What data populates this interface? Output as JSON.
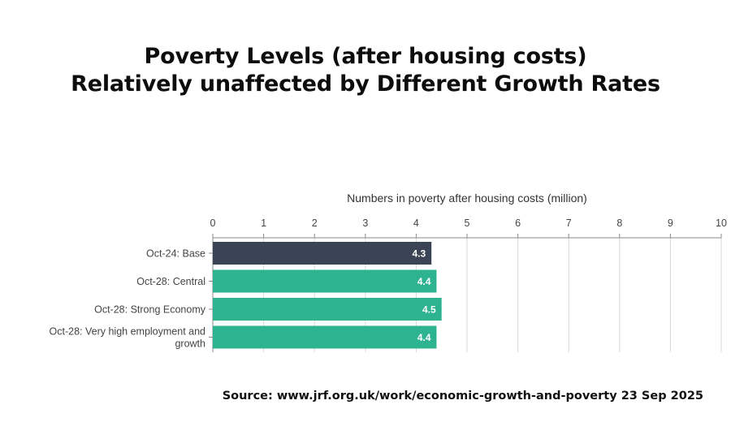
{
  "title_line1": "Poverty Levels (after housing costs)",
  "title_line2": "Relatively unaffected by Different Growth Rates",
  "source": "Source: www.jrf.org.uk/work/economic-growth-and-poverty 23 Sep 2025",
  "chart_data": {
    "type": "bar",
    "orientation": "horizontal",
    "xlabel": "Numbers in poverty after housing costs (million)",
    "xlabel_position": "top",
    "xlim": [
      0,
      10
    ],
    "xticks": [
      "0",
      "1",
      "2",
      "3",
      "4",
      "5",
      "6",
      "7",
      "8",
      "9",
      "10"
    ],
    "grid": true,
    "categories": [
      [
        "Oct-24: Base"
      ],
      [
        "Oct-28: Central"
      ],
      [
        "Oct-28: Strong Economy"
      ],
      [
        "Oct-28: Very high employment and",
        "growth"
      ]
    ],
    "values": [
      4.3,
      4.4,
      4.5,
      4.4
    ],
    "value_labels": [
      "4.3",
      "4.4",
      "4.5",
      "4.4"
    ],
    "colors": [
      "#3b4454",
      "#2db390",
      "#2db390",
      "#2db390"
    ],
    "grid_color": "#d9d9d9",
    "axis_color": "#888888"
  }
}
